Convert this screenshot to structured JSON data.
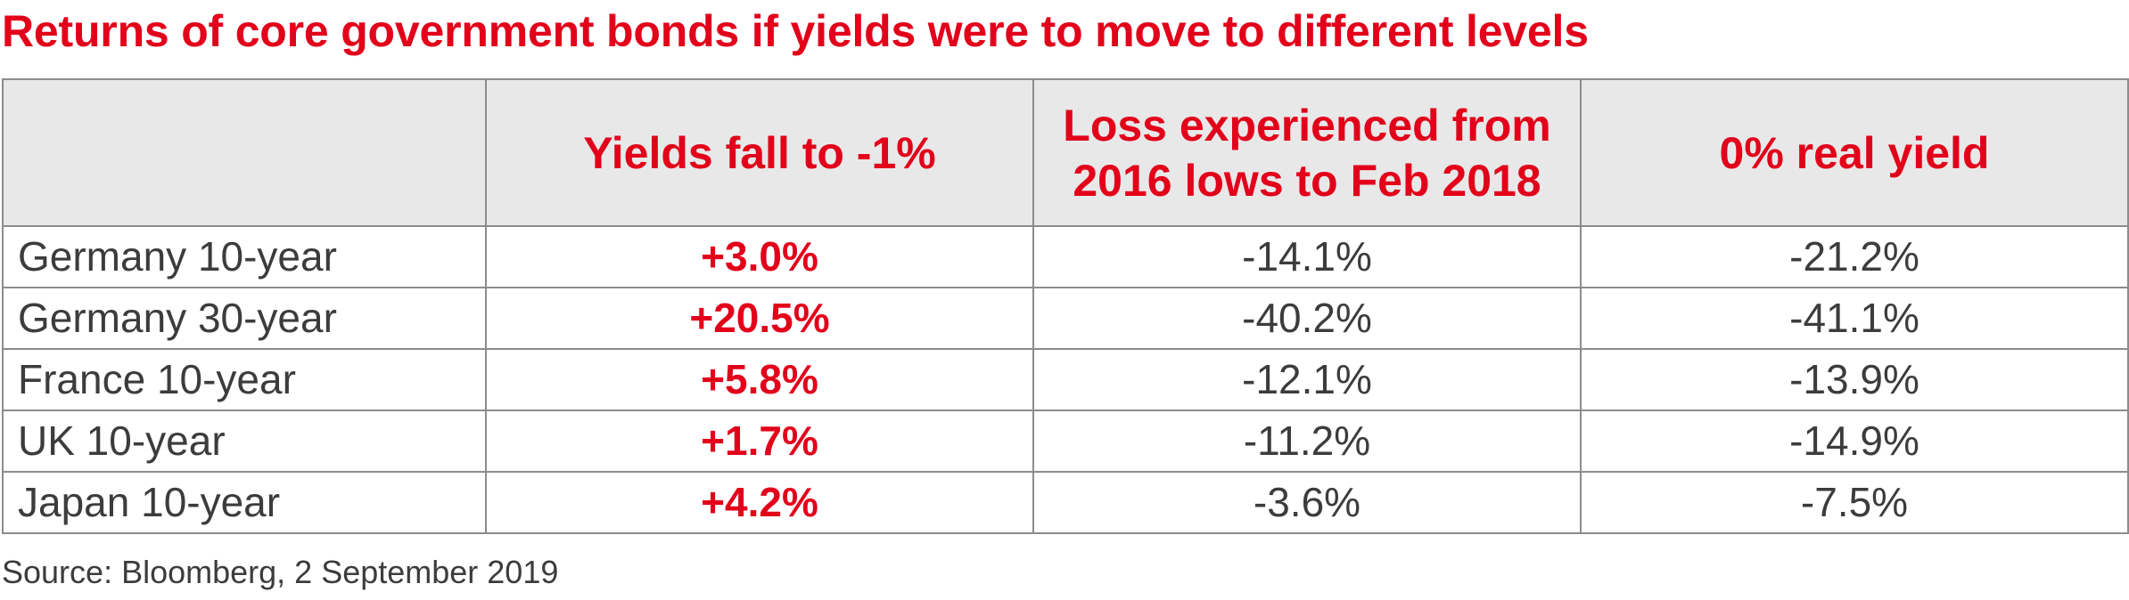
{
  "chart_data": {
    "type": "table",
    "title": "Returns of core government bonds if yields were to move to different levels",
    "columns": [
      "",
      "Yields fall to -1%",
      "Loss experienced from 2016 lows to Feb 2018",
      "0% real yield"
    ],
    "header_lines": {
      "col1": "Yields fall to -1%",
      "col2_line1": "Loss experienced from",
      "col2_line2": "2016 lows to Feb 2018",
      "col3": "0% real yield"
    },
    "rows": [
      {
        "label": "Germany 10-year",
        "yields_fall": "+3.0%",
        "loss": "-14.1%",
        "real_yield": "-21.2%"
      },
      {
        "label": "Germany 30-year",
        "yields_fall": "+20.5%",
        "loss": "-40.2%",
        "real_yield": "-41.1%"
      },
      {
        "label": "France 10-year",
        "yields_fall": "+5.8%",
        "loss": "-12.1%",
        "real_yield": "-13.9%"
      },
      {
        "label": "UK 10-year",
        "yields_fall": "+1.7%",
        "loss": "-11.2%",
        "real_yield": "-14.9%"
      },
      {
        "label": "Japan 10-year",
        "yields_fall": "+4.2%",
        "loss": "-3.6%",
        "real_yield": "-7.5%"
      }
    ],
    "source": "Source: Bloomberg, 2 September 2019"
  },
  "colors": {
    "accent": "#e2001a",
    "header_bg": "#e8e8e8",
    "border": "#8c8c8c",
    "text": "#3c3c3c"
  }
}
